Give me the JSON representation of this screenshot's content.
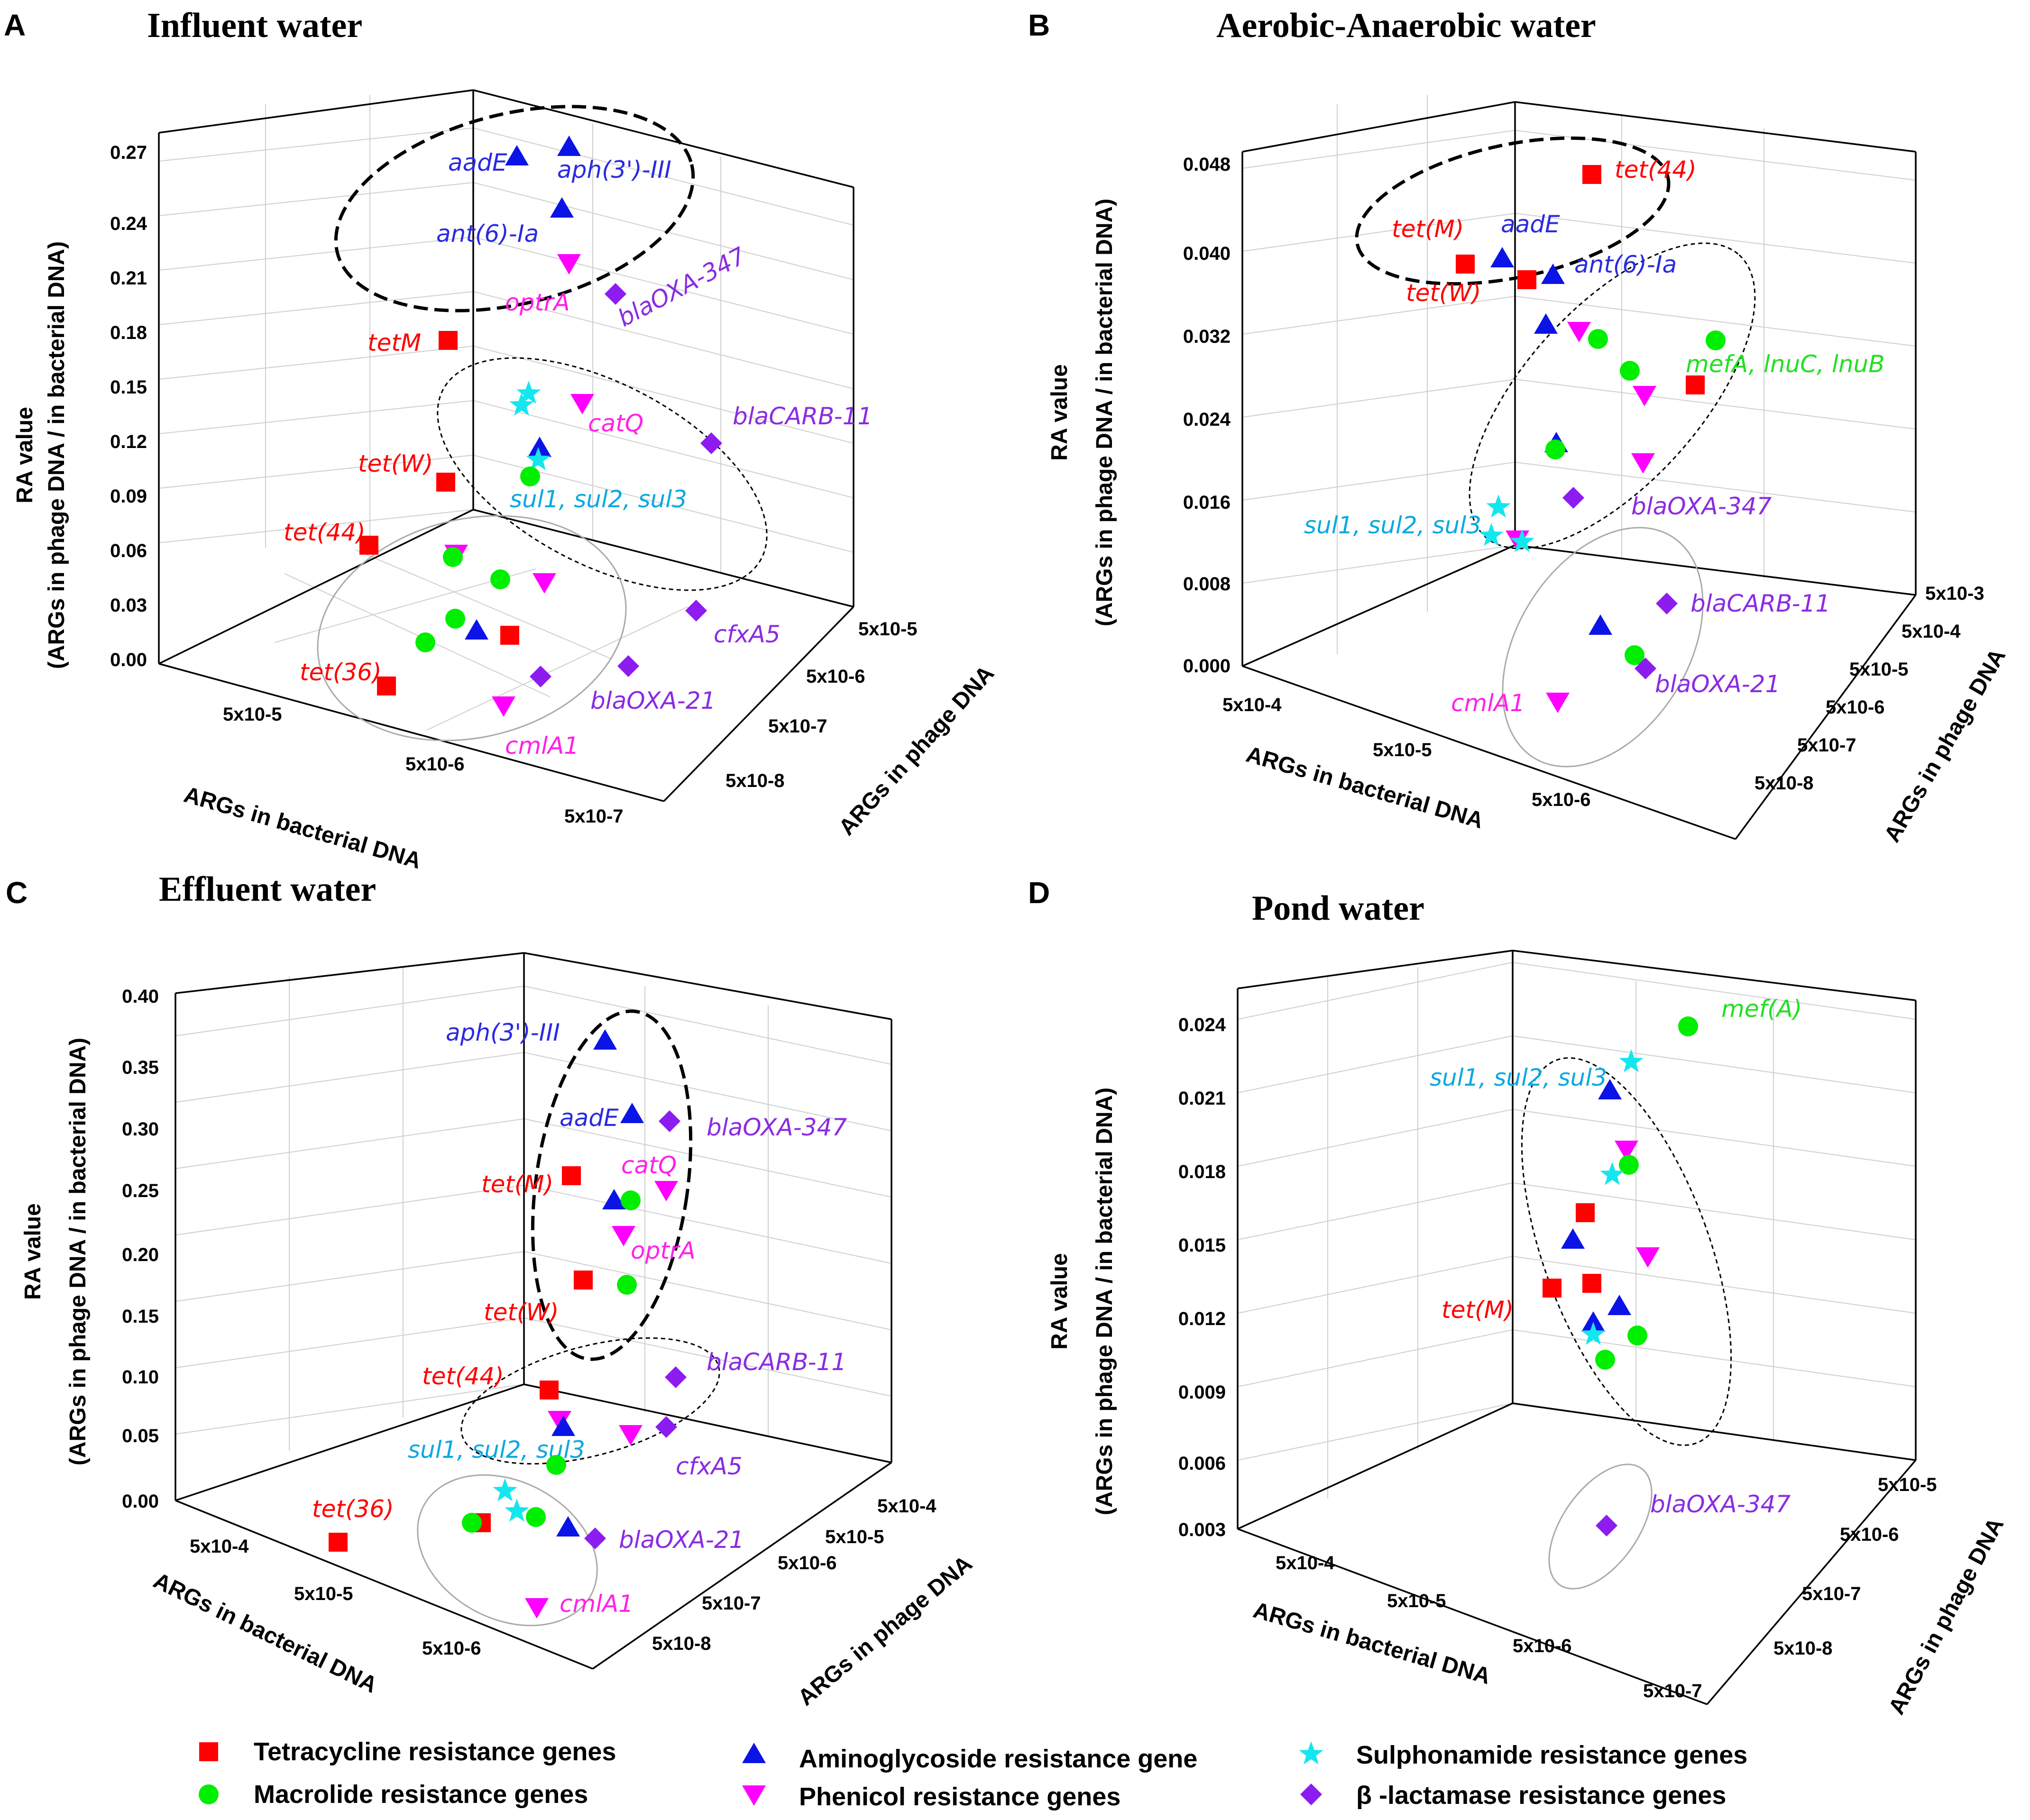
{
  "colors": {
    "tetracycline": "#ff0000",
    "macrolide": "#00ee00",
    "aminoglycoside": "#0a14e6",
    "phenicol": "#ff00ff",
    "sulphonamide": "#14e6ee",
    "beta_lactamase": "#8c1cf0",
    "label_red": "#ff0000",
    "label_blue": "#2a2ae0",
    "label_magenta": "#ff22e6",
    "label_purple": "#8a2be2",
    "label_cyan": "#0aa8e0",
    "label_green": "#22e022",
    "label_black": "#111111"
  },
  "legend": [
    {
      "key": "tetracycline",
      "label": "Tetracycline resistance genes",
      "marker": "square"
    },
    {
      "key": "macrolide",
      "label": "Macrolide resistance genes",
      "marker": "circle"
    },
    {
      "key": "aminoglycoside",
      "label": "Aminoglycoside resistance gene",
      "marker": "triangle-up"
    },
    {
      "key": "phenicol",
      "label": "Phenicol resistance genes",
      "marker": "triangle-down"
    },
    {
      "key": "sulphonamide",
      "label": "Sulphonamide resistance genes",
      "marker": "star"
    },
    {
      "key": "beta_lactamase",
      "label": "β -lactamase resistance genes",
      "marker": "diamond"
    }
  ],
  "chart_data": [
    {
      "type": "scatter3d",
      "letter": "A",
      "title": "Influent water",
      "zlabel": "RA value",
      "zlabel2": "(ARGs in phage DNA / in bacterial DNA)",
      "xlabel": "ARGs in bacterial DNA",
      "ylabel": "ARGs in phage DNA",
      "zlim": [
        0,
        0.27
      ],
      "zticks": [
        "0.00",
        "0.03",
        "0.06",
        "0.09",
        "0.12",
        "0.15",
        "0.18",
        "0.21",
        "0.24",
        "0.27"
      ],
      "xticks": [
        "5x10-5",
        "5x10-6",
        "5x10-7"
      ],
      "yticks": [
        "5x10-8",
        "5x10-7",
        "5x10-6",
        "5x10-5"
      ],
      "gene_labels": [
        {
          "text": "aadE",
          "color": "label_blue"
        },
        {
          "text": "aph(3')-III",
          "color": "label_blue"
        },
        {
          "text": "ant(6)-Ia",
          "color": "label_blue"
        },
        {
          "text": "optrA",
          "color": "label_magenta"
        },
        {
          "text": "blaOXA-347",
          "color": "label_purple"
        },
        {
          "text": "tetM",
          "color": "label_red"
        },
        {
          "text": "catQ",
          "color": "label_magenta"
        },
        {
          "text": "blaCARB-11",
          "color": "label_purple"
        },
        {
          "text": "tet(W)",
          "color": "label_red"
        },
        {
          "text": "sul1, sul2, sul3",
          "color": "label_cyan"
        },
        {
          "text": "tet(44)",
          "color": "label_red"
        },
        {
          "text": "cfxA5",
          "color": "label_purple"
        },
        {
          "text": "tet(36)",
          "color": "label_red"
        },
        {
          "text": "blaOXA-21",
          "color": "label_purple"
        },
        {
          "text": "cmlA1",
          "color": "label_magenta"
        }
      ]
    },
    {
      "type": "scatter3d",
      "letter": "B",
      "title": "Aerobic-Anaerobic water",
      "zlabel": "RA value",
      "zlabel2": "(ARGs in phage DNA / in bacterial DNA)",
      "xlabel": "ARGs in bacterial DNA",
      "ylabel": "ARGs in phage DNA",
      "zlim": [
        0,
        0.048
      ],
      "zticks": [
        "0.000",
        "0.008",
        "0.016",
        "0.024",
        "0.032",
        "0.040",
        "0.048"
      ],
      "xticks": [
        "5x10-4",
        "5x10-5",
        "5x10-6"
      ],
      "yticks": [
        "5x10-8",
        "5x10-7",
        "5x10-6",
        "5x10-5",
        "5x10-4",
        "5x10-3"
      ],
      "gene_labels": [
        {
          "text": "tet(44)",
          "color": "label_red"
        },
        {
          "text": "tet(M)",
          "color": "label_red"
        },
        {
          "text": "aadE",
          "color": "label_blue"
        },
        {
          "text": "tet(W)",
          "color": "label_red"
        },
        {
          "text": "ant(6)-Ia",
          "color": "label_blue"
        },
        {
          "text": "mefA, lnuC, lnuB",
          "color": "label_green"
        },
        {
          "text": "blaOXA-347",
          "color": "label_purple"
        },
        {
          "text": "sul1, sul2, sul3",
          "color": "label_cyan"
        },
        {
          "text": "blaCARB-11",
          "color": "label_purple"
        },
        {
          "text": "blaOXA-21",
          "color": "label_purple"
        },
        {
          "text": "cmlA1",
          "color": "label_magenta"
        }
      ]
    },
    {
      "type": "scatter3d",
      "letter": "C",
      "title": "Effluent water",
      "zlabel": "RA value",
      "zlabel2": "(ARGs in phage DNA / in bacterial DNA)",
      "xlabel": "ARGs in bacterial DNA",
      "ylabel": "ARGs in phage DNA",
      "zlim": [
        0,
        0.4
      ],
      "zticks": [
        "0.00",
        "0.05",
        "0.10",
        "0.15",
        "0.20",
        "0.25",
        "0.30",
        "0.35",
        "0.40"
      ],
      "xticks": [
        "5x10-4",
        "5x10-5",
        "5x10-6"
      ],
      "yticks": [
        "5x10-8",
        "5x10-7",
        "5x10-6",
        "5x10-5",
        "5x10-4"
      ],
      "gene_labels": [
        {
          "text": "aph(3')-III",
          "color": "label_blue"
        },
        {
          "text": "aadE",
          "color": "label_blue"
        },
        {
          "text": "blaOXA-347",
          "color": "label_purple"
        },
        {
          "text": "catQ",
          "color": "label_magenta"
        },
        {
          "text": "tet(M)",
          "color": "label_red"
        },
        {
          "text": "optrA",
          "color": "label_magenta"
        },
        {
          "text": "tet(W)",
          "color": "label_red"
        },
        {
          "text": "blaCARB-11",
          "color": "label_purple"
        },
        {
          "text": "tet(44)",
          "color": "label_red"
        },
        {
          "text": "sul1, sul2, sul3",
          "color": "label_cyan"
        },
        {
          "text": "cfxA5",
          "color": "label_purple"
        },
        {
          "text": "tet(36)",
          "color": "label_red"
        },
        {
          "text": "blaOXA-21",
          "color": "label_purple"
        },
        {
          "text": "cmlA1",
          "color": "label_magenta"
        }
      ]
    },
    {
      "type": "scatter3d",
      "letter": "D",
      "title": "Pond water",
      "zlabel": "RA value",
      "zlabel2": "(ARGs in phage DNA / in bacterial DNA)",
      "xlabel": "ARGs in bacterial DNA",
      "ylabel": "ARGs in phage DNA",
      "zlim": [
        0.003,
        0.024
      ],
      "zticks": [
        "0.003",
        "0.006",
        "0.009",
        "0.012",
        "0.015",
        "0.018",
        "0.021",
        "0.024"
      ],
      "xticks": [
        "5x10-4",
        "5x10-5",
        "5x10-6",
        "5x10-7"
      ],
      "yticks": [
        "5x10-8",
        "5x10-7",
        "5x10-6",
        "5x10-5"
      ],
      "gene_labels": [
        {
          "text": "mef(A)",
          "color": "label_green"
        },
        {
          "text": "sul1, sul2, sul3",
          "color": "label_cyan"
        },
        {
          "text": "tet(M)",
          "color": "label_red"
        },
        {
          "text": "blaOXA-347",
          "color": "label_purple"
        }
      ]
    }
  ]
}
